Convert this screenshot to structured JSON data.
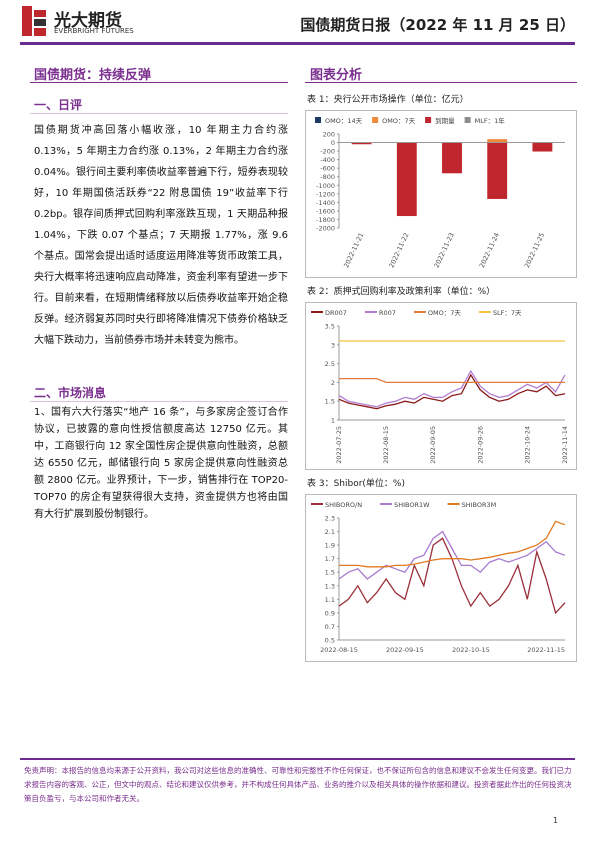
{
  "header": {
    "logo_cn": "光大期货",
    "logo_en": "EVERBRIGHT FUTURES",
    "title": "国债期货日报（2022 年 11 月 25 日）"
  },
  "article": {
    "title": "国债期货：持续反弹",
    "sections": [
      {
        "heading": "一、日评",
        "text": "国债期货冲高回落小幅收涨，10 年期主力合约涨 0.13%，5 年期主力合约涨 0.13%，2 年期主力合约涨 0.04%。银行间主要利率债收益率普遍下行，短券表现较好，10 年期国债活跃券“22 附息国债 19”收益率下行 0.2bp。银存间质押式回购利率涨跌互现，1 天期品种报 1.04%，下跌 0.07 个基点；7 天期报 1.77%，涨 9.6 个基点。国常会提出适时适度运用降准等货币政策工具，央行大概率将迅速响应启动降准，资金利率有望进一步下行。目前来看，在短期情绪释放以后债券收益率开始企稳反弹。经济弱复苏同时央行即将降准情况下债券价格缺乏大幅下跌动力，当前债券市场并未转变为熊市。"
      },
      {
        "heading": "二、市场消息",
        "text": "1、国有六大行落实“地产 16 条”，与多家房企签订合作协议，已披露的意向性授信额度高达 12750 亿元。其中，工商银行向 12 家全国性房企提供意向性融资，总额达 6550 亿元，邮储银行向 5 家房企提供意向性融资总额 2800 亿元。业界预计，下一步，销售排行在 TOP20-TOP70 的房企有望获得很大支持，资金提供方也将由国有大行扩展到股份制银行。"
      }
    ]
  },
  "figures": {
    "heading": "图表分析"
  },
  "chart_data": [
    {
      "type": "bar",
      "title": "表 1：央行公开市场操作（单位：亿元）",
      "categories": [
        "2022-11-21",
        "2022-11-22",
        "2022-11-23",
        "2022-11-24",
        "2022-11-25"
      ],
      "series": [
        {
          "name": "OMO：14天",
          "color": "#1f3864",
          "values": [
            null,
            null,
            null,
            null,
            null
          ]
        },
        {
          "name": "OMO：7天",
          "color": "#ed8a3c",
          "values": [
            null,
            null,
            null,
            80,
            null
          ]
        },
        {
          "name": "到期量",
          "color": "#c0262d",
          "values": [
            -40,
            -1720,
            -720,
            -1320,
            -210
          ]
        },
        {
          "name": "MLF：1年",
          "color": "#8c8c8c",
          "values": [
            null,
            null,
            null,
            null,
            null
          ]
        }
      ],
      "ylim": [
        -2000,
        200
      ],
      "yticks": [
        200,
        0,
        -200,
        -400,
        -600,
        -800,
        -1000,
        -1200,
        -1400,
        -1600,
        -1800,
        -2000
      ]
    },
    {
      "type": "line",
      "title": "表 2：质押式回购利率及政策利率（单位：%）",
      "categories": [
        "2022-07-25",
        null,
        null,
        null,
        null,
        "2022-08-15",
        null,
        null,
        null,
        null,
        "2022-09-05",
        null,
        null,
        null,
        null,
        "2022-09-26",
        null,
        null,
        null,
        null,
        "2022-10-24",
        null,
        null,
        null,
        "2022-11-14"
      ],
      "series": [
        {
          "name": "DR007",
          "color": "#8b1a1a",
          "values": [
            1.55,
            1.45,
            1.4,
            1.35,
            1.3,
            1.38,
            1.42,
            1.5,
            1.45,
            1.6,
            1.55,
            1.5,
            1.65,
            1.7,
            2.2,
            1.8,
            1.6,
            1.5,
            1.55,
            1.7,
            1.8,
            1.75,
            1.9,
            1.65,
            1.7
          ]
        },
        {
          "name": "R007",
          "color": "#b07ccf",
          "values": [
            1.65,
            1.5,
            1.45,
            1.4,
            1.35,
            1.45,
            1.5,
            1.6,
            1.55,
            1.7,
            1.6,
            1.6,
            1.75,
            1.85,
            2.3,
            1.9,
            1.7,
            1.6,
            1.65,
            1.8,
            1.95,
            1.85,
            2.0,
            1.75,
            2.2
          ]
        },
        {
          "name": "OMO：7天",
          "color": "#e07b39",
          "values": [
            2.1,
            2.1,
            2.1,
            2.1,
            2.1,
            2.0,
            2.0,
            2.0,
            2.0,
            2.0,
            2.0,
            2.0,
            2.0,
            2.0,
            2.0,
            2.0,
            2.0,
            2.0,
            2.0,
            2.0,
            2.0,
            2.0,
            2.0,
            2.0,
            2.0
          ]
        },
        {
          "name": "SLF：7天",
          "color": "#f5c242",
          "values": [
            3.1,
            3.1,
            3.1,
            3.1,
            3.1,
            3.1,
            3.1,
            3.1,
            3.1,
            3.1,
            3.1,
            3.1,
            3.1,
            3.1,
            3.1,
            3.1,
            3.1,
            3.1,
            3.1,
            3.1,
            3.1,
            3.1,
            3.1,
            3.1,
            3.1
          ]
        }
      ],
      "ylim": [
        1,
        3.5
      ],
      "yticks": [
        1,
        1.5,
        2,
        2.5,
        3,
        3.5
      ]
    },
    {
      "type": "line",
      "title": "表 3：Shibor(单位：%)",
      "categories": [
        "2022-08-15",
        null,
        null,
        null,
        null,
        null,
        null,
        "2022-09-15",
        null,
        null,
        null,
        null,
        null,
        null,
        "2022-10-15",
        null,
        null,
        null,
        null,
        null,
        null,
        null,
        "2022-11-15",
        null,
        null
      ],
      "series": [
        {
          "name": "SHIBORO/N",
          "color": "#9b2f3a",
          "values": [
            1.0,
            1.1,
            1.3,
            1.05,
            1.2,
            1.4,
            1.2,
            1.1,
            1.6,
            1.3,
            1.9,
            2.0,
            1.7,
            1.3,
            1.0,
            1.2,
            1.0,
            1.1,
            1.3,
            1.6,
            1.1,
            1.8,
            1.4,
            0.9,
            1.05
          ]
        },
        {
          "name": "SHIBOR1W",
          "color": "#a77bd0",
          "values": [
            1.4,
            1.5,
            1.55,
            1.4,
            1.5,
            1.6,
            1.55,
            1.5,
            1.7,
            1.75,
            2.0,
            2.1,
            1.85,
            1.6,
            1.6,
            1.5,
            1.65,
            1.7,
            1.65,
            1.7,
            1.75,
            1.85,
            1.95,
            1.8,
            1.75
          ]
        },
        {
          "name": "SHIBOR3M",
          "color": "#e07b22",
          "values": [
            1.6,
            1.6,
            1.6,
            1.58,
            1.58,
            1.58,
            1.6,
            1.6,
            1.62,
            1.65,
            1.68,
            1.7,
            1.7,
            1.7,
            1.68,
            1.7,
            1.72,
            1.75,
            1.78,
            1.8,
            1.85,
            1.9,
            2.0,
            2.25,
            2.2
          ]
        }
      ],
      "ylim": [
        0.5,
        2.3
      ],
      "yticks": [
        0.5,
        0.7,
        0.9,
        1.1,
        1.3,
        1.5,
        1.7,
        1.9,
        2.1,
        2.3
      ]
    }
  ],
  "footer": {
    "disclaimer": "免责声明：本报告的信息均来源于公开资料，我公司对这些信息的准确性、可靠性和完整性不作任何保证，也不保证所包含的信息和建议不会发生任何变更。我们已力求报告内容的客观、公正，但文中的观点、结论和建议仅供参考，并不构成任何具体产品、业务的推介以及相关具体的操作依据和建议。投资者据此作出的任何投资决策自负盈亏，与本公司和作者无关。",
    "page": "1"
  }
}
